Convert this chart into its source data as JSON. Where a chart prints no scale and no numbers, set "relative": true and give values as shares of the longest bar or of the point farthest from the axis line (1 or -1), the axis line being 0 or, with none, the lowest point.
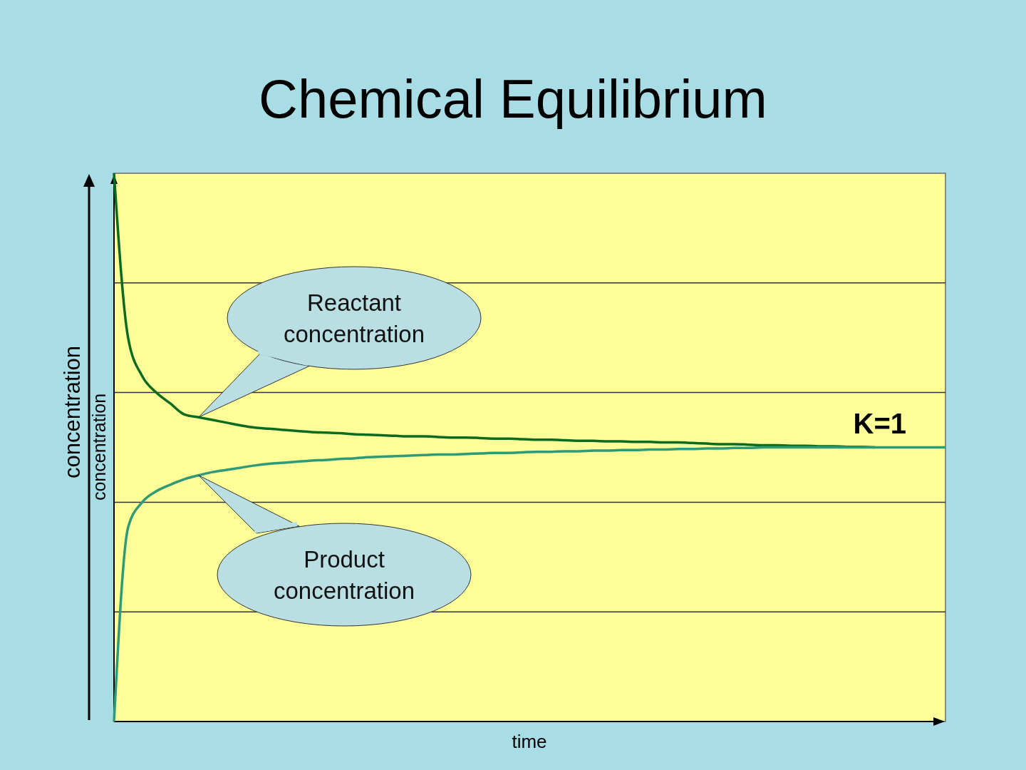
{
  "chart_data": {
    "type": "line",
    "title": "Chemical Equilibrium",
    "xlabel": "time",
    "ylabel": "concentration",
    "relative": true,
    "grid": "y",
    "categories": [
      null,
      null,
      null,
      null,
      null,
      null,
      null,
      null,
      null,
      null,
      null,
      null,
      null,
      null,
      null,
      null,
      null,
      null,
      null,
      null,
      null,
      null,
      null,
      null,
      null,
      null,
      null,
      null,
      null,
      null,
      null,
      null,
      null,
      null,
      null,
      null,
      null,
      null,
      null,
      null,
      null,
      null,
      null,
      null,
      null,
      null,
      null,
      null,
      null,
      null,
      null,
      null,
      null,
      null,
      null,
      null,
      null,
      null,
      null,
      null
    ],
    "series": [
      {
        "color": "#0b6b1f",
        "values": [
          1,
          0.7,
          0.63,
          0.6,
          0.58,
          0.56,
          0.555,
          0.55,
          0.545,
          0.54,
          0.536,
          0.534,
          0.532,
          0.53,
          0.528,
          0.527,
          0.526,
          0.524,
          0.523,
          0.522,
          0.521,
          0.52,
          0.52,
          0.519,
          0.518,
          0.518,
          0.517,
          0.516,
          0.516,
          0.515,
          0.514,
          0.514,
          0.513,
          0.512,
          0.512,
          0.511,
          0.511,
          0.51,
          0.51,
          0.509,
          0.509,
          0.508,
          0.507,
          0.506,
          0.506,
          0.505,
          0.504,
          0.504,
          0.503,
          0.503,
          0.502,
          0.502,
          0.501,
          0.501,
          0.5,
          null,
          null,
          null,
          null,
          null
        ]
      },
      {
        "color": "#2e9a78",
        "values": [
          0,
          0.354,
          0.4,
          0.42,
          0.432,
          0.442,
          0.449,
          0.455,
          0.459,
          0.463,
          0.467,
          0.47,
          0.472,
          0.474,
          0.476,
          0.477,
          0.479,
          0.48,
          0.482,
          0.483,
          0.484,
          0.485,
          0.486,
          0.487,
          0.487,
          0.488,
          0.489,
          0.49,
          0.49,
          0.491,
          0.492,
          0.492,
          0.493,
          0.493,
          0.494,
          0.494,
          0.495,
          0.495,
          0.496,
          0.496,
          0.497,
          0.497,
          0.498,
          0.498,
          0.499,
          0.499,
          0.5,
          0.5,
          0.5,
          0.5,
          0.5,
          0.5,
          0.5,
          0.5,
          0.5,
          0.5,
          0.5,
          0.5,
          0.5,
          0.5
        ]
      }
    ],
    "annotations": [
      "Reactant concentration",
      "Product concentration",
      "K=1",
      "concentration"
    ]
  }
}
